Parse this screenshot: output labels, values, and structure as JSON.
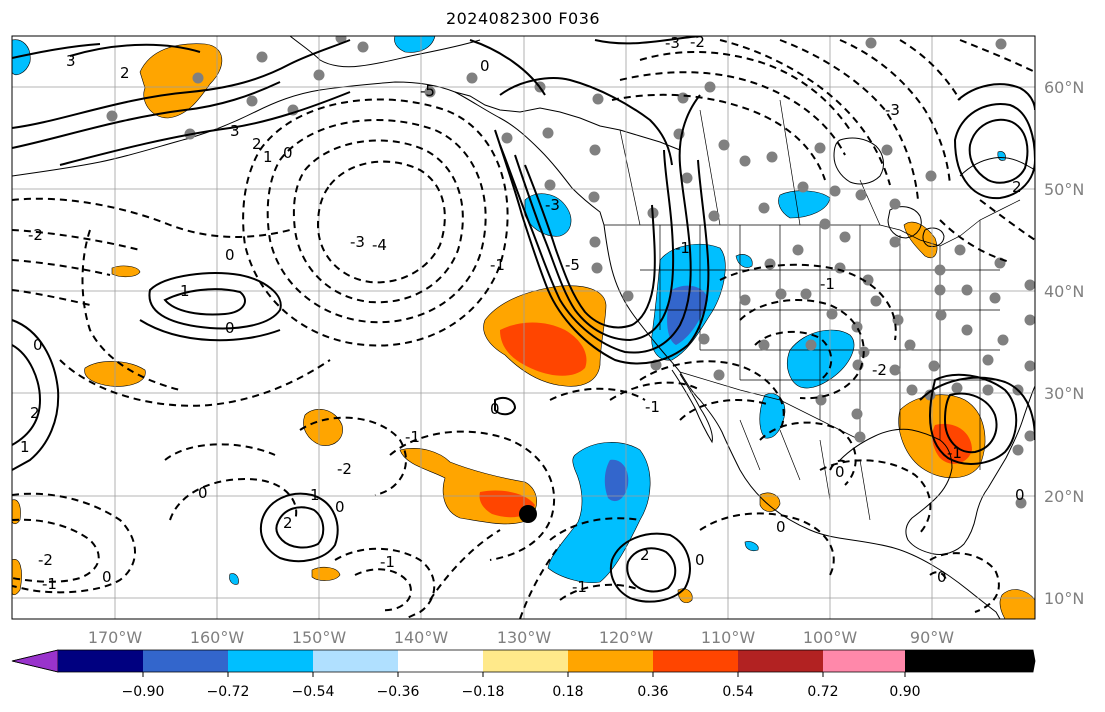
{
  "title": "2024082300 F036",
  "map": {
    "projection": "cylindrical",
    "lon_range": [
      -180,
      -80
    ],
    "lat_range": [
      8,
      65
    ],
    "gridlines": true,
    "lon_ticks": [
      {
        "lon": -170,
        "label": "170°W"
      },
      {
        "lon": -160,
        "label": "160°W"
      },
      {
        "lon": -150,
        "label": "150°W"
      },
      {
        "lon": -140,
        "label": "140°W"
      },
      {
        "lon": -130,
        "label": "130°W"
      },
      {
        "lon": -120,
        "label": "120°W"
      },
      {
        "lon": -110,
        "label": "110°W"
      },
      {
        "lon": -100,
        "label": "100°W"
      },
      {
        "lon": -90,
        "label": "90°W"
      }
    ],
    "lat_ticks": [
      {
        "lat": 60,
        "label": "60°N"
      },
      {
        "lat": 50,
        "label": "50°N"
      },
      {
        "lat": 40,
        "label": "40°N"
      },
      {
        "lat": 30,
        "label": "30°N"
      },
      {
        "lat": 20,
        "label": "20°N"
      },
      {
        "lat": 10,
        "label": "10°N"
      }
    ],
    "contour_labels": [
      "3",
      "2",
      "1",
      "0",
      "-1",
      "-2",
      "-3",
      "-4",
      "-5"
    ],
    "highlight_point": {
      "lon": -130,
      "lat": 18.3,
      "color": "#000000"
    }
  },
  "colorbar": {
    "colors": [
      "#9933cc",
      "#000080",
      "#3366cc",
      "#00bfff",
      "#b0e0ff",
      "#ffffff",
      "#ffe98a",
      "#ffa500",
      "#ff4500",
      "#b22222",
      "#ff88aa"
    ],
    "labels": [
      "−0.90",
      "−0.72",
      "−0.54",
      "−0.36",
      "−0.18",
      "0.18",
      "0.36",
      "0.54",
      "0.72",
      "0.90"
    ],
    "extend": "both"
  }
}
